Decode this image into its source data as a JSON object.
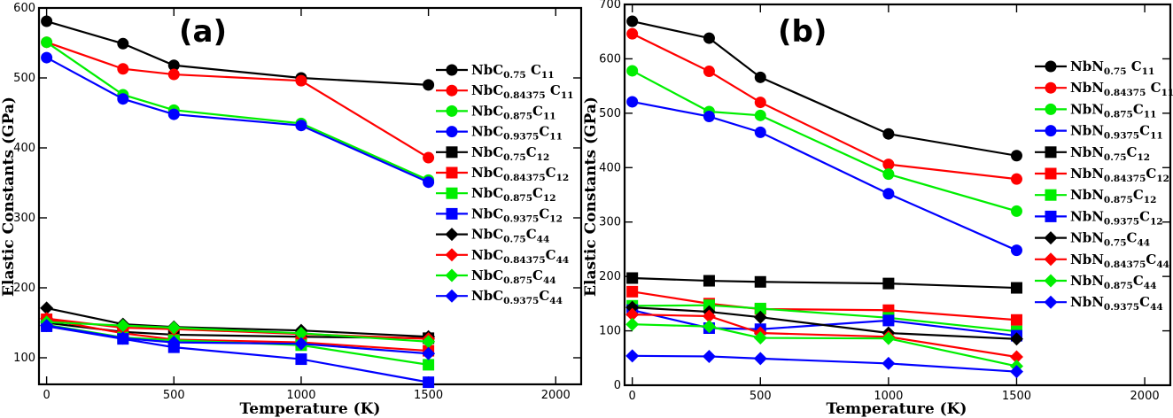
{
  "colors": {
    "black": "#000000",
    "red": "#ff0000",
    "green": "#00ee00",
    "blue": "#0000ff"
  },
  "chart_data": [
    {
      "type": "line",
      "panel_label": "(a)",
      "title": "",
      "xlabel": "Temperature (K)",
      "ylabel": "Elastic Constants (GPa)",
      "xlim": [
        -30,
        2100
      ],
      "ylim": [
        62,
        600
      ],
      "xticks": [
        0,
        500,
        1000,
        1500,
        2000
      ],
      "yticks": [
        100,
        200,
        300,
        400,
        500,
        600
      ],
      "x": [
        0,
        300,
        500,
        1000,
        1500
      ],
      "grid": false,
      "legend_position": "right",
      "series": [
        {
          "name": "NbC0.75 C11",
          "base": "NbC",
          "sub": "0.75",
          "tail": " C",
          "tailsub": "11",
          "color": "black",
          "marker": "circle",
          "values": [
            581,
            549,
            518,
            500,
            490
          ]
        },
        {
          "name": "NbC0.84375 C11",
          "base": "NbC",
          "sub": "0.84375",
          "tail": " C",
          "tailsub": "11",
          "color": "red",
          "marker": "circle",
          "values": [
            551,
            513,
            505,
            496,
            386
          ]
        },
        {
          "name": "NbC0.875C11",
          "base": "NbC",
          "sub": "0.875",
          "tail": "C",
          "tailsub": "11",
          "color": "green",
          "marker": "circle",
          "values": [
            551,
            476,
            454,
            435,
            354
          ]
        },
        {
          "name": "NbC0.9375C11",
          "base": "NbC",
          "sub": "0.9375",
          "tail": "C",
          "tailsub": "11",
          "color": "blue",
          "marker": "circle",
          "values": [
            529,
            470,
            448,
            432,
            351
          ]
        },
        {
          "name": "NbC0.75C12",
          "base": "NbC",
          "sub": "0.75",
          "tail": "C",
          "tailsub": "12",
          "color": "black",
          "marker": "square",
          "values": [
            150,
            137,
            133,
            130,
            128
          ]
        },
        {
          "name": "NbC0.84375C12",
          "base": "NbC",
          "sub": "0.84375",
          "tail": "C",
          "tailsub": "12",
          "color": "red",
          "marker": "square",
          "values": [
            155,
            135,
            126,
            122,
            110
          ]
        },
        {
          "name": "NbC0.875C12",
          "base": "NbC",
          "sub": "0.875",
          "tail": "C",
          "tailsub": "12",
          "color": "green",
          "marker": "square",
          "values": [
            147,
            129,
            125,
            118,
            90
          ]
        },
        {
          "name": "NbC0.9375C12",
          "base": "NbC",
          "sub": "0.9375",
          "tail": "C",
          "tailsub": "12",
          "color": "blue",
          "marker": "square",
          "values": [
            145,
            127,
            115,
            98,
            65
          ]
        },
        {
          "name": "NbC0.75C44",
          "base": "NbC",
          "sub": "0.75",
          "tail": "C",
          "tailsub": "44",
          "color": "black",
          "marker": "diamond",
          "values": [
            171,
            148,
            144,
            139,
            130
          ]
        },
        {
          "name": "NbC0.84375C44",
          "base": "NbC",
          "sub": "0.84375",
          "tail": "C",
          "tailsub": "44",
          "color": "red",
          "marker": "diamond",
          "values": [
            156,
            143,
            141,
            134,
            127
          ]
        },
        {
          "name": "NbC0.875C44",
          "base": "NbC",
          "sub": "0.875",
          "tail": "C",
          "tailsub": "44",
          "color": "green",
          "marker": "diamond",
          "values": [
            151,
            146,
            143,
            135,
            123
          ]
        },
        {
          "name": "NbC0.9375C44",
          "base": "NbC",
          "sub": "0.9375",
          "tail": "C",
          "tailsub": "44",
          "color": "blue",
          "marker": "diamond",
          "values": [
            146,
            128,
            122,
            120,
            106
          ]
        }
      ]
    },
    {
      "type": "line",
      "panel_label": "(b)",
      "title": "",
      "xlabel": "Temperature (K)",
      "ylabel": "Elastic Constants (GPa)",
      "xlim": [
        -30,
        2100
      ],
      "ylim": [
        0,
        700
      ],
      "xticks": [
        0,
        500,
        1000,
        1500,
        2000
      ],
      "yticks": [
        0,
        100,
        200,
        300,
        400,
        500,
        600,
        700
      ],
      "x": [
        0,
        300,
        500,
        1000,
        1500
      ],
      "grid": false,
      "legend_position": "right",
      "series": [
        {
          "name": "NbN0.75 C11",
          "base": "NbN",
          "sub": "0.75",
          "tail": " C",
          "tailsub": "11",
          "color": "black",
          "marker": "circle",
          "values": [
            669,
            638,
            566,
            462,
            422
          ]
        },
        {
          "name": "NbN0.84375 C11",
          "base": "NbN",
          "sub": "0.84375",
          "tail": " C",
          "tailsub": "11",
          "color": "red",
          "marker": "circle",
          "values": [
            646,
            577,
            520,
            406,
            379
          ]
        },
        {
          "name": "NbN0.875C11",
          "base": "NbN",
          "sub": "0.875",
          "tail": "C",
          "tailsub": "11",
          "color": "green",
          "marker": "circle",
          "values": [
            578,
            503,
            496,
            388,
            320
          ]
        },
        {
          "name": "NbN0.9375C11",
          "base": "NbN",
          "sub": "0.9375",
          "tail": "C",
          "tailsub": "11",
          "color": "blue",
          "marker": "circle",
          "values": [
            521,
            494,
            465,
            352,
            248
          ]
        },
        {
          "name": "NbN0.75C12",
          "base": "NbN",
          "sub": "0.75",
          "tail": "C",
          "tailsub": "12",
          "color": "black",
          "marker": "square",
          "values": [
            197,
            192,
            190,
            187,
            179
          ]
        },
        {
          "name": "NbN0.84375C12",
          "base": "NbN",
          "sub": "0.84375",
          "tail": "C",
          "tailsub": "12",
          "color": "red",
          "marker": "square",
          "values": [
            172,
            150,
            140,
            138,
            120
          ]
        },
        {
          "name": "NbN0.875C12",
          "base": "NbN",
          "sub": "0.875",
          "tail": "C",
          "tailsub": "12",
          "color": "green",
          "marker": "square",
          "values": [
            146,
            147,
            141,
            124,
            99
          ]
        },
        {
          "name": "NbN0.9375C12",
          "base": "NbN",
          "sub": "0.9375",
          "tail": "C",
          "tailsub": "12",
          "color": "blue",
          "marker": "square",
          "values": [
            138,
            105,
            103,
            119,
            91
          ]
        },
        {
          "name": "NbN0.75C44",
          "base": "NbN",
          "sub": "0.75",
          "tail": "C",
          "tailsub": "44",
          "color": "black",
          "marker": "diamond",
          "values": [
            143,
            135,
            125,
            96,
            85
          ]
        },
        {
          "name": "NbN0.84375C44",
          "base": "NbN",
          "sub": "0.84375",
          "tail": "C",
          "tailsub": "44",
          "color": "red",
          "marker": "diamond",
          "values": [
            130,
            127,
            96,
            89,
            52
          ]
        },
        {
          "name": "NbN0.875C44",
          "base": "NbN",
          "sub": "0.875",
          "tail": "C",
          "tailsub": "44",
          "color": "green",
          "marker": "diamond",
          "values": [
            112,
            108,
            87,
            86,
            35
          ]
        },
        {
          "name": "NbN0.9375C44",
          "base": "NbN",
          "sub": "0.9375",
          "tail": "C",
          "tailsub": "44",
          "color": "blue",
          "marker": "diamond",
          "values": [
            54,
            53,
            49,
            40,
            25
          ]
        }
      ]
    }
  ]
}
